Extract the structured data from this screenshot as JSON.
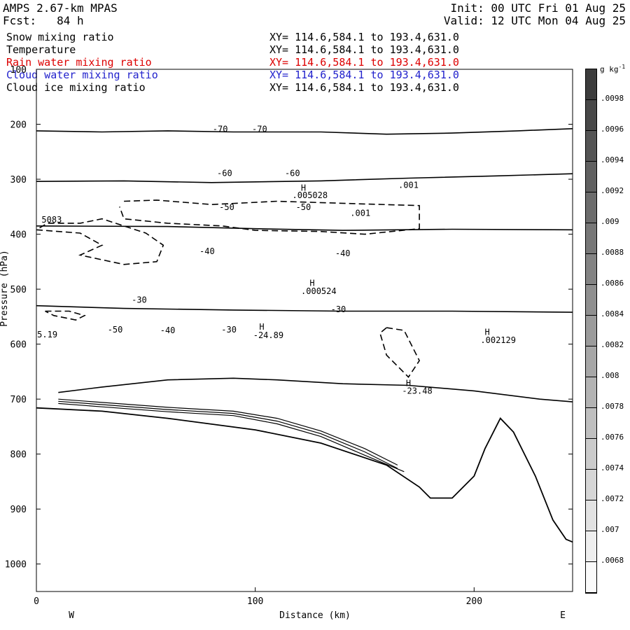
{
  "header": {
    "model": "AMPS 2.67-km MPAS",
    "forecast": "Fcst:   84 h",
    "init": "Init: 00 UTC Fri 01 Aug 25",
    "valid": "Valid: 12 UTC Mon 04 Aug 25"
  },
  "fields": [
    {
      "name": "Snow mixing ratio",
      "xy": "XY= 114.6,584.1 to 193.4,631.0",
      "color": "#000000"
    },
    {
      "name": "Temperature",
      "xy": "XY= 114.6,584.1 to 193.4,631.0",
      "color": "#000000"
    },
    {
      "name": "Rain water mixing ratio",
      "xy": "XY= 114.6,584.1 to 193.4,631.0",
      "color": "#dd0000"
    },
    {
      "name": "Cloud water mixing ratio",
      "xy": "XY= 114.6,584.1 to 193.4,631.0",
      "color": "#2222cc"
    },
    {
      "name": "Cloud ice mixing ratio",
      "xy": "XY= 114.6,584.1 to 193.4,631.0",
      "color": "#000000"
    }
  ],
  "chart_data": {
    "type": "contour cross-section",
    "xlabel": "Distance (km)",
    "ylabel": "Pressure (hPa)",
    "xlim": [
      0,
      245
    ],
    "ylim": [
      100,
      1050
    ],
    "xticks": [
      "0",
      "100",
      "200"
    ],
    "yticks": [
      "100",
      "200",
      "300",
      "400",
      "500",
      "600",
      "700",
      "800",
      "900",
      "1000"
    ],
    "x_end_labels": {
      "west": "W",
      "east": "E"
    },
    "colorbar": {
      "unit": "g kg",
      "unit_exp": "-1",
      "labels": [
        ".0098",
        ".0096",
        ".0094",
        ".0092",
        ".009",
        ".0088",
        ".0086",
        ".0084",
        ".0082",
        ".008",
        ".0078",
        ".0076",
        ".0074",
        ".0072",
        ".007",
        ".0068"
      ]
    },
    "temperature_contours": [
      {
        "label": "-70",
        "points": [
          [
            0,
            212
          ],
          [
            30,
            214
          ],
          [
            60,
            212
          ],
          [
            90,
            214
          ],
          [
            130,
            214
          ],
          [
            160,
            218
          ],
          [
            190,
            216
          ],
          [
            220,
            212
          ],
          [
            245,
            208
          ]
        ]
      },
      {
        "label": "-60",
        "points": [
          [
            0,
            304
          ],
          [
            40,
            303
          ],
          [
            80,
            306
          ],
          [
            130,
            303
          ],
          [
            170,
            298
          ],
          [
            210,
            294
          ],
          [
            245,
            290
          ]
        ]
      },
      {
        "label": "-50",
        "points": [
          [
            0,
            385
          ],
          [
            60,
            386
          ],
          [
            100,
            390
          ],
          [
            140,
            393
          ],
          [
            190,
            391
          ],
          [
            245,
            392
          ]
        ]
      },
      {
        "label": "-40",
        "points": [
          [
            0,
            530
          ],
          [
            40,
            535
          ],
          [
            90,
            538
          ],
          [
            140,
            540
          ],
          [
            190,
            540
          ],
          [
            245,
            542
          ]
        ]
      },
      {
        "label": "-30",
        "points": [
          [
            10,
            688
          ],
          [
            30,
            678
          ],
          [
            60,
            665
          ],
          [
            90,
            662
          ],
          [
            110,
            665
          ],
          [
            140,
            672
          ],
          [
            170,
            675
          ],
          [
            200,
            685
          ],
          [
            230,
            700
          ],
          [
            245,
            705
          ]
        ]
      }
    ],
    "annotations": [
      {
        "text": "-70",
        "x": 84,
        "y": 214
      },
      {
        "text": "-70",
        "x": 102,
        "y": 214
      },
      {
        "text": "-60",
        "x": 86,
        "y": 294
      },
      {
        "text": "-60",
        "x": 117,
        "y": 294
      },
      {
        "text": "-50",
        "x": 87,
        "y": 356
      },
      {
        "text": "-50",
        "x": 122,
        "y": 356
      },
      {
        "text": "-40",
        "x": 78,
        "y": 436
      },
      {
        "text": "-40",
        "x": 140,
        "y": 440
      },
      {
        "text": "-30",
        "x": 47,
        "y": 525
      },
      {
        "text": "-30",
        "x": 138,
        "y": 542
      },
      {
        "text": "-50",
        "x": 36,
        "y": 579
      },
      {
        "text": "-40",
        "x": 60,
        "y": 580
      },
      {
        "text": "-30",
        "x": 88,
        "y": 579
      },
      {
        "text": "H",
        "x": 122,
        "y": 321
      },
      {
        "text": ".005028",
        "x": 125,
        "y": 334
      },
      {
        "text": ".001",
        "x": 170,
        "y": 316
      },
      {
        "text": ".001",
        "x": 148,
        "y": 367
      },
      {
        "text": "5083",
        "x": 7,
        "y": 379
      },
      {
        "text": "H",
        "x": 126,
        "y": 494
      },
      {
        "text": ".000524",
        "x": 129,
        "y": 509
      },
      {
        "text": "H",
        "x": 103,
        "y": 574
      },
      {
        "text": "-24.89",
        "x": 106,
        "y": 589
      },
      {
        "text": "H",
        "x": 170,
        "y": 676
      },
      {
        "text": "-23.48",
        "x": 174,
        "y": 690
      },
      {
        "text": "H",
        "x": 206,
        "y": 583
      },
      {
        "text": ".002129",
        "x": 211,
        "y": 598
      },
      {
        "text": "5.19",
        "x": 5,
        "y": 588
      }
    ]
  }
}
